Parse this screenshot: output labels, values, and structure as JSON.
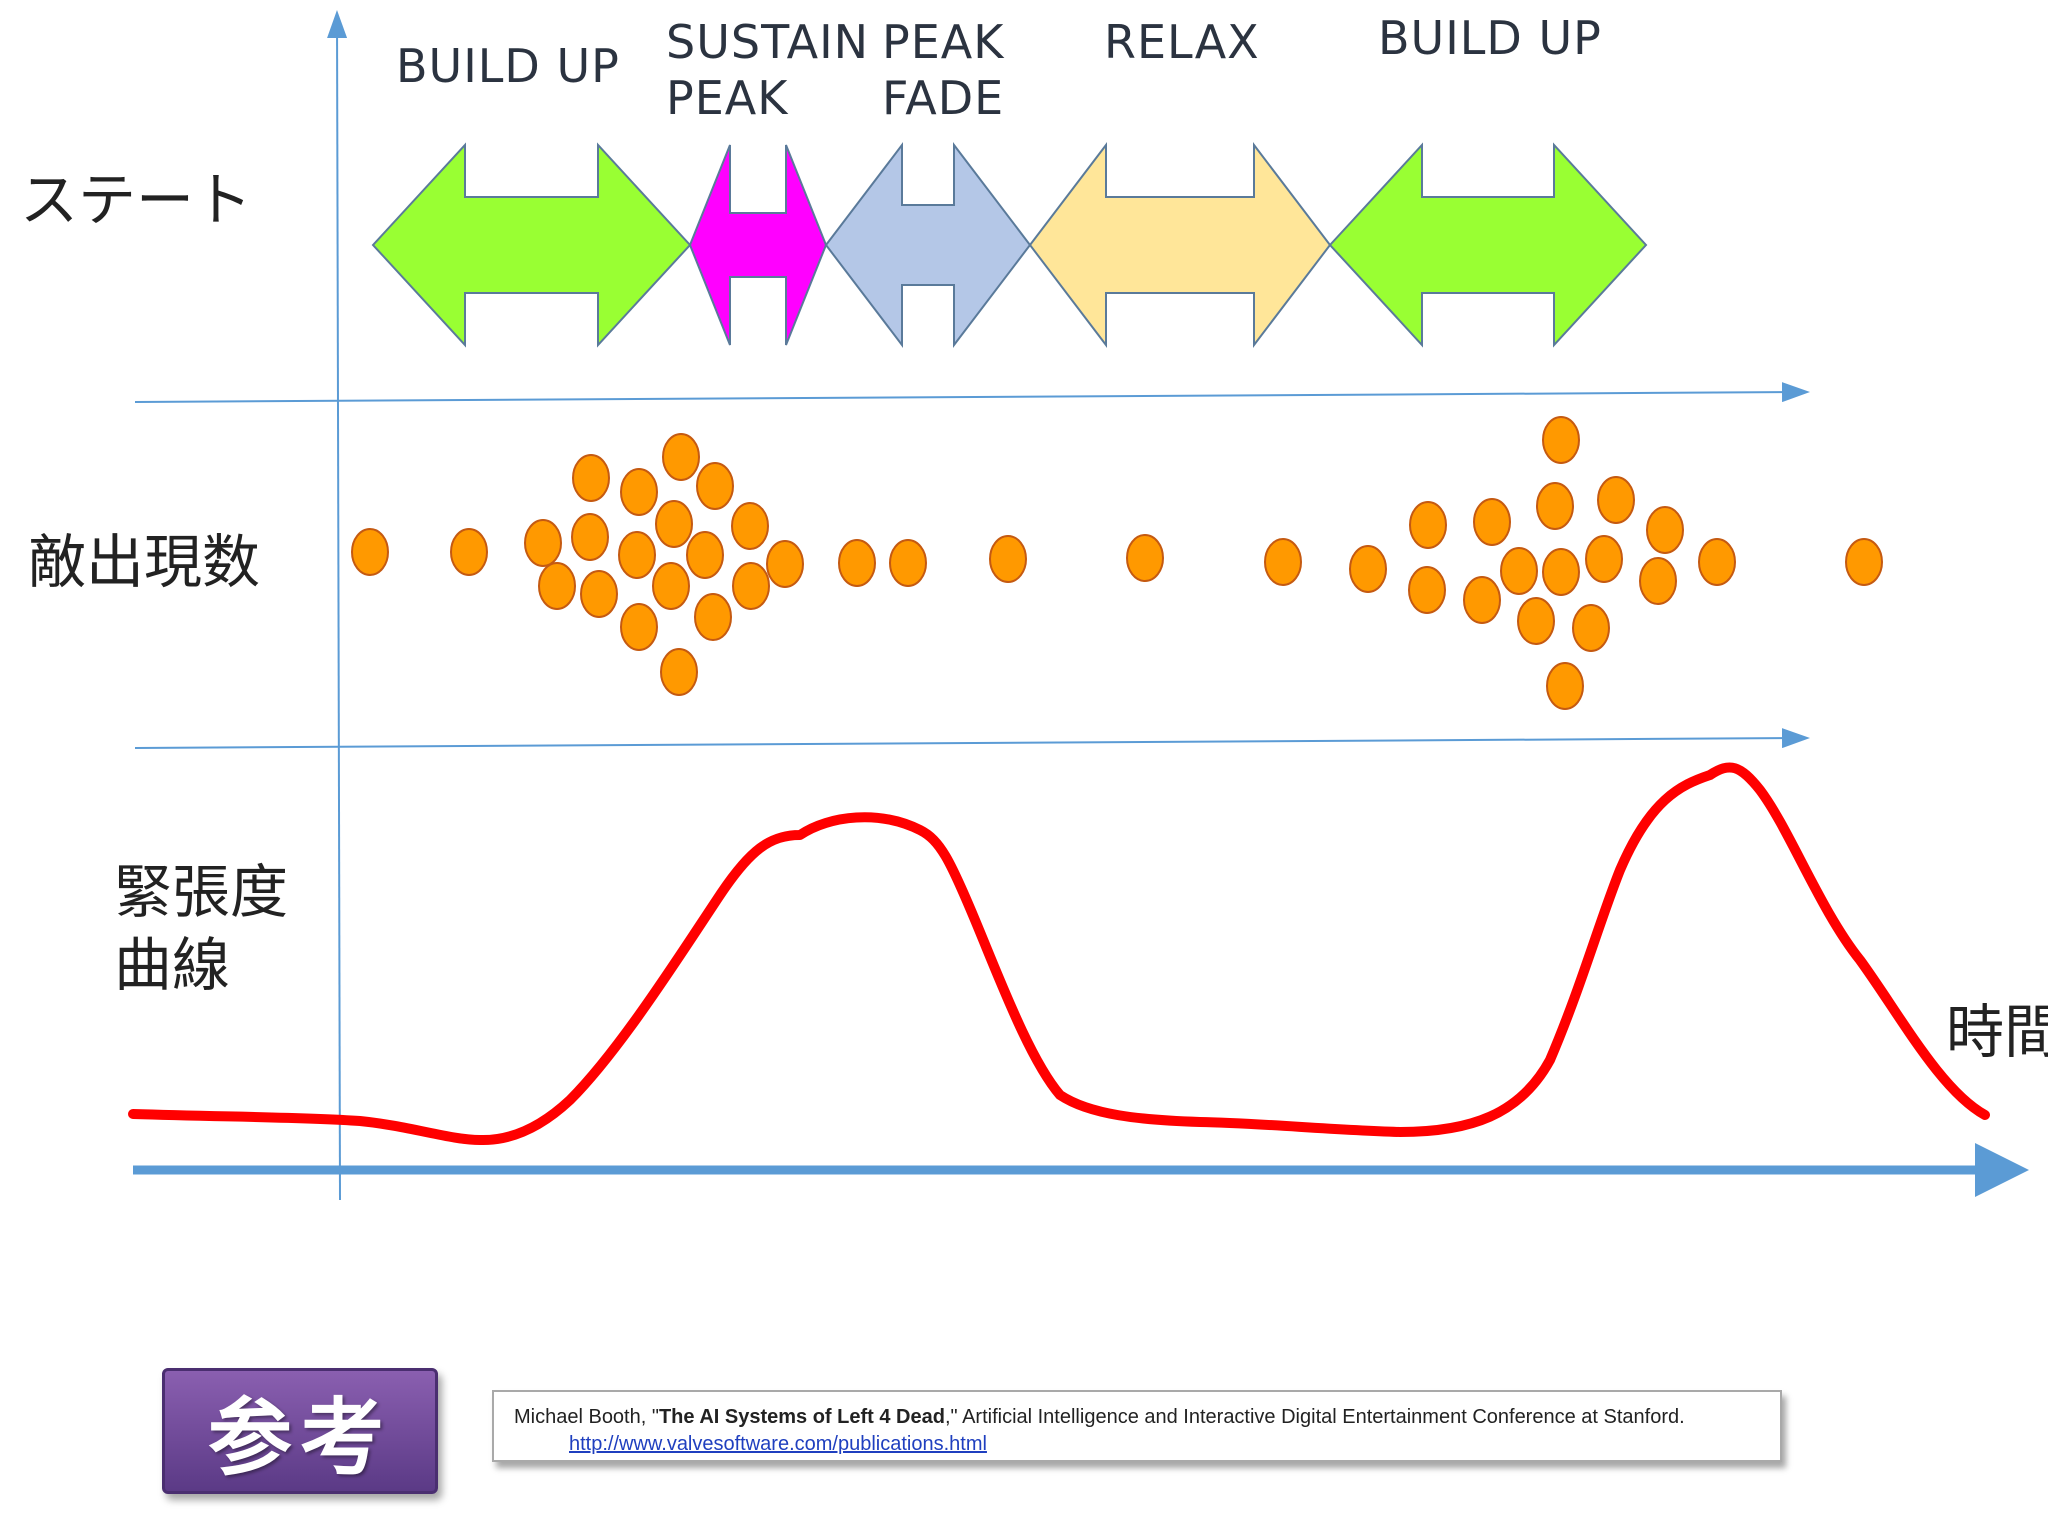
{
  "labels": {
    "state_row": "ステート",
    "enemy_row": "敵出現数",
    "tension_row_line1": "緊張度",
    "tension_row_line2": "曲線",
    "time_axis": "時間"
  },
  "states": [
    {
      "line1": "BUILD UP",
      "line2": "",
      "color": "#99ff33"
    },
    {
      "line1": "SUSTAIN",
      "line2": "PEAK",
      "color": "#ff00ff"
    },
    {
      "line1": "PEAK",
      "line2": "FADE",
      "color": "#b4c7e7"
    },
    {
      "line1": "RELAX",
      "line2": "",
      "color": "#ffe699"
    },
    {
      "line1": "BUILD UP",
      "line2": "",
      "color": "#99ff33"
    }
  ],
  "colors": {
    "axis": "#5b9bd5",
    "curve": "#ff0000",
    "dot_fill": "#ff9900",
    "dot_stroke": "#c55a11"
  },
  "reference": {
    "badge": "参考",
    "author": "Michael Booth, \"",
    "title": "The AI Systems of Left 4 Dead",
    "rest": ",\" Artificial Intelligence and Interactive Digital Entertainment Conference at Stanford.",
    "url": "http://www.valvesoftware.com/publications.html"
  }
}
